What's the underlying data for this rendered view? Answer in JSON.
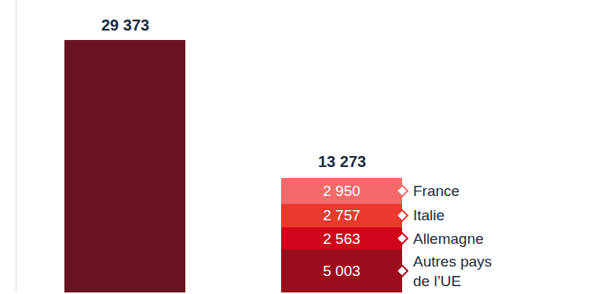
{
  "chart_data": {
    "type": "bar",
    "stacked": true,
    "data_labels": true,
    "tick_labels": false,
    "grid": false,
    "categories": [
      null,
      null
    ],
    "ylim": [
      0,
      34000
    ],
    "yticks": [],
    "totals": [
      null,
      13273
    ],
    "total_labels": [
      null,
      "13 273"
    ],
    "series": [
      {
        "color": "#6b1421",
        "values": [
          29373,
          null
        ],
        "value_labels": [
          "29 373",
          null
        ]
      },
      {
        "name": "Autres pays de l’UE",
        "color": "#9a0e1c",
        "values": [
          null,
          5003
        ],
        "value_labels": [
          null,
          "5 003"
        ]
      },
      {
        "name": "Allemagne",
        "color": "#d1061a",
        "values": [
          null,
          2563
        ],
        "value_labels": [
          null,
          "2 563"
        ]
      },
      {
        "name": "Italie",
        "color": "#ea3a2f",
        "values": [
          null,
          2757
        ],
        "value_labels": [
          null,
          "2 757"
        ]
      },
      {
        "name": "France",
        "color": "#f46a6a",
        "values": [
          null,
          2950
        ],
        "value_labels": [
          null,
          "2 950"
        ]
      }
    ]
  }
}
